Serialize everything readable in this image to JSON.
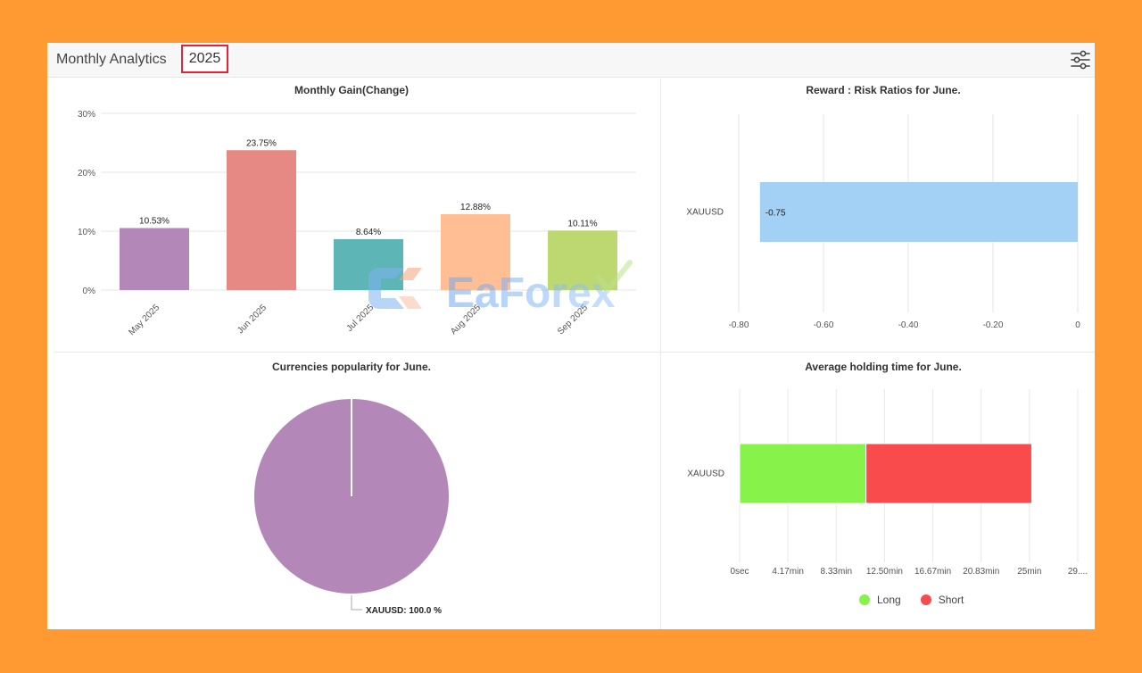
{
  "header": {
    "title": "Monthly Analytics",
    "year": "2025",
    "filter_icon": "sliders-icon"
  },
  "watermark": {
    "text": "EaForex"
  },
  "colors": {
    "page_bg": "#FF9A33",
    "highlight_border": "#E8213A",
    "long": "#86F24A",
    "short": "#F94B4B",
    "ratio_bar": "#A3D0F5",
    "pie": "#B388B8"
  },
  "chart_data": [
    {
      "type": "bar",
      "title": "Monthly Gain(Change)",
      "categories": [
        "May 2025",
        "Jun 2025",
        "Jul 2025",
        "Aug 2025",
        "Sep 2025"
      ],
      "values": [
        10.53,
        23.75,
        8.64,
        12.88,
        10.11
      ],
      "data_labels": [
        "10.53%",
        "23.75%",
        "8.64%",
        "12.88%",
        "10.11%"
      ],
      "colors": [
        "#B388B8",
        "#E68883",
        "#5EB5B5",
        "#FFBE94",
        "#BDD771"
      ],
      "yticks": [
        "0%",
        "10%",
        "20%",
        "30%"
      ],
      "ylim": [
        0,
        30
      ],
      "grid": true
    },
    {
      "type": "bar",
      "orientation": "horizontal",
      "title": "Reward : Risk Ratios for June.",
      "categories": [
        "XAUUSD"
      ],
      "values": [
        -0.75
      ],
      "data_labels": [
        "-0.75"
      ],
      "xticks": [
        "-0.80",
        "-0.60",
        "-0.40",
        "-0.20",
        "0"
      ],
      "xlim": [
        -0.8,
        0
      ],
      "grid": true
    },
    {
      "type": "pie",
      "title": "Currencies popularity for June.",
      "slices": [
        {
          "label": "XAUUSD",
          "value": 100.0,
          "display": "XAUUSD: 100.0 %"
        }
      ]
    },
    {
      "type": "bar",
      "orientation": "horizontal",
      "stacked": true,
      "title": "Average holding time for June.",
      "categories": [
        "XAUUSD"
      ],
      "series": [
        {
          "name": "Long",
          "values": [
            10.9
          ]
        },
        {
          "name": "Short",
          "values": [
            14.3
          ]
        }
      ],
      "xticks": [
        "0sec",
        "4.17min",
        "8.33min",
        "12.50min",
        "16.67min",
        "20.83min",
        "25min",
        "29...."
      ],
      "xlim": [
        0,
        29.17
      ],
      "legend_position": "bottom",
      "grid": true
    }
  ]
}
